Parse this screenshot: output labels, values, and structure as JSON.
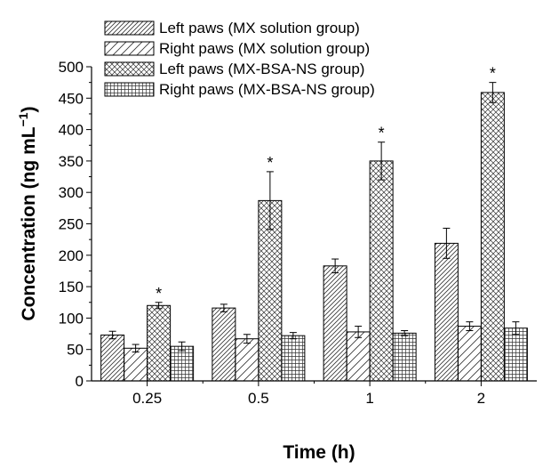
{
  "chart_data": {
    "type": "bar",
    "title": "",
    "xlabel": "Time (h)",
    "ylabel": "Concentration (ng mL",
    "ylabel_sup": "−1",
    "ylabel_tail": ")",
    "categories": [
      "0.25",
      "0.5",
      "1",
      "2"
    ],
    "ylim": [
      0,
      500
    ],
    "yticks": [
      "0",
      "50",
      "100",
      "150",
      "200",
      "250",
      "300",
      "350",
      "400",
      "450",
      "500"
    ],
    "series": [
      {
        "name": "Left paws (MX solution group)",
        "pattern": "diag-dense",
        "values": [
          73,
          116,
          183,
          219
        ],
        "errors": [
          6,
          6,
          11,
          24
        ]
      },
      {
        "name": "Right paws (MX solution group)",
        "pattern": "diag-sparse",
        "values": [
          52,
          67,
          78,
          87
        ],
        "errors": [
          6,
          7,
          9,
          7
        ]
      },
      {
        "name": "Left paws (MX-BSA-NS group)",
        "pattern": "crosshatch",
        "values": [
          120,
          287,
          350,
          459
        ],
        "errors": [
          5,
          46,
          30,
          16
        ]
      },
      {
        "name": "Right paws (MX-BSA-NS group)",
        "pattern": "grid",
        "values": [
          55,
          72,
          76,
          84
        ],
        "errors": [
          7,
          5,
          4,
          10
        ]
      }
    ],
    "annotations": [
      {
        "series": 2,
        "category": 0,
        "text": "*"
      },
      {
        "series": 2,
        "category": 1,
        "text": "*"
      },
      {
        "series": 2,
        "category": 2,
        "text": "*"
      },
      {
        "series": 2,
        "category": 3,
        "text": "*"
      }
    ],
    "legend_position": "top-left",
    "grid": false
  }
}
